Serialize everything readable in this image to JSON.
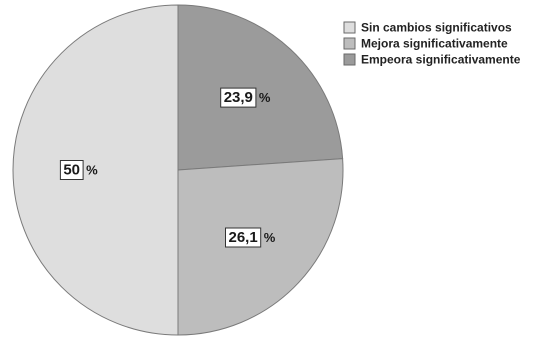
{
  "chart_data": {
    "type": "pie",
    "title": "",
    "unit_label": "%",
    "start_angle_deg": 0,
    "direction": "clockwise",
    "legend_position": "top-right",
    "slices": [
      {
        "label": "Empeora significativamente",
        "display": "23,9",
        "value": 23.9,
        "color": "#9b9b9b"
      },
      {
        "label": "Mejora significativamente",
        "display": "26,1",
        "value": 26.1,
        "color": "#bdbdbd"
      },
      {
        "label": "Sin cambios significativos",
        "display": "50",
        "value": 50.0,
        "color": "#dedede"
      }
    ],
    "legend": [
      {
        "label": "Sin cambios significativos",
        "color": "#dedede"
      },
      {
        "label": "Mejora significativamente",
        "color": "#bdbdbd"
      },
      {
        "label": "Empeora significativamente",
        "color": "#9b9b9b"
      }
    ]
  }
}
